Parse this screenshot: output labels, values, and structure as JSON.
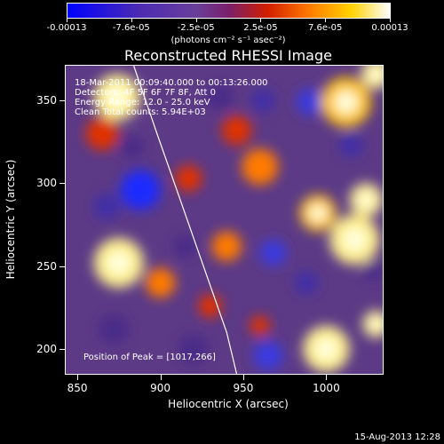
{
  "colorbar": {
    "tick_labels": [
      "-0.00013",
      "-7.6e-05",
      "-2.5e-05",
      "2.5e-05",
      "7.6e-05",
      "0.00013"
    ],
    "units": "(photons cm⁻² s⁻¹ asec⁻²)",
    "stops": [
      "#0000ff",
      "#4b2bb3",
      "#6a3f9a",
      "#7a1f6a",
      "#d21e00",
      "#ff7a00",
      "#ffd200",
      "#ffffff"
    ]
  },
  "annotations": {
    "time_range": "18-Mar-2011 00:09:40.000 to 00:13:26.000",
    "detectors": "Detectors: 4F 5F 6F 7F 8F, Att 0",
    "energy_range": "Energy Range: 12.0 - 25.0 keV",
    "algorithm": "Clean     Total counts: 5.94E+03",
    "peak_position": "Position of Peak = [1017,266]"
  },
  "timestamp": "15-Aug-2013 12:28",
  "chart_data": {
    "type": "heatmap",
    "title": "Reconstructed RHESSI Image",
    "xlabel": "Heliocentric X (arcsec)",
    "ylabel": "Heliocentric Y (arcsec)",
    "xlim": [
      843,
      1034
    ],
    "ylim": [
      185,
      371
    ],
    "xticks": [
      "850",
      "900",
      "950",
      "1000"
    ],
    "yticks": [
      "350",
      "300",
      "250",
      "200"
    ],
    "value_range": [
      -0.00013,
      0.00013
    ],
    "peak": [
      1017,
      266
    ],
    "limb_curve": [
      [
        884,
        371
      ],
      [
        898,
        330
      ],
      [
        912,
        290
      ],
      [
        926,
        250
      ],
      [
        940,
        210
      ],
      [
        946,
        185
      ]
    ],
    "blobs": [
      {
        "x": 874,
        "y": 352,
        "r": 14,
        "v": 1.0
      },
      {
        "x": 865,
        "y": 330,
        "r": 10,
        "v": 0.55
      },
      {
        "x": 1012,
        "y": 349,
        "r": 15,
        "v": 0.85
      },
      {
        "x": 1030,
        "y": 366,
        "r": 9,
        "v": 0.9
      },
      {
        "x": 960,
        "y": 310,
        "r": 11,
        "v": 0.6
      },
      {
        "x": 946,
        "y": 332,
        "r": 9,
        "v": 0.55
      },
      {
        "x": 917,
        "y": 303,
        "r": 8,
        "v": 0.45
      },
      {
        "x": 1017,
        "y": 266,
        "r": 15,
        "v": 1.0
      },
      {
        "x": 995,
        "y": 282,
        "r": 11,
        "v": 0.8
      },
      {
        "x": 1024,
        "y": 290,
        "r": 10,
        "v": 0.9
      },
      {
        "x": 875,
        "y": 252,
        "r": 15,
        "v": 0.95
      },
      {
        "x": 900,
        "y": 240,
        "r": 9,
        "v": 0.6
      },
      {
        "x": 940,
        "y": 262,
        "r": 9,
        "v": 0.7
      },
      {
        "x": 1000,
        "y": 200,
        "r": 14,
        "v": 1.0
      },
      {
        "x": 1030,
        "y": 215,
        "r": 8,
        "v": 0.95
      },
      {
        "x": 960,
        "y": 214,
        "r": 6,
        "v": 0.5
      },
      {
        "x": 930,
        "y": 226,
        "r": 7,
        "v": 0.45
      },
      {
        "x": 883,
        "y": 322,
        "r": 7,
        "v": -0.4
      },
      {
        "x": 888,
        "y": 296,
        "r": 12,
        "v": -1.0
      },
      {
        "x": 990,
        "y": 349,
        "r": 8,
        "v": -0.8
      },
      {
        "x": 1015,
        "y": 323,
        "r": 7,
        "v": -0.55
      },
      {
        "x": 968,
        "y": 258,
        "r": 8,
        "v": -0.7
      },
      {
        "x": 988,
        "y": 240,
        "r": 7,
        "v": -0.6
      },
      {
        "x": 868,
        "y": 286,
        "r": 8,
        "v": -0.5
      },
      {
        "x": 915,
        "y": 262,
        "r": 7,
        "v": -0.45
      },
      {
        "x": 962,
        "y": 350,
        "r": 7,
        "v": -0.55
      },
      {
        "x": 872,
        "y": 212,
        "r": 9,
        "v": -0.4
      },
      {
        "x": 920,
        "y": 200,
        "r": 9,
        "v": -0.4
      },
      {
        "x": 965,
        "y": 196,
        "r": 9,
        "v": -0.75
      },
      {
        "x": 1028,
        "y": 247,
        "r": 6,
        "v": -0.4
      },
      {
        "x": 936,
        "y": 352,
        "r": 8,
        "v": -0.3
      }
    ]
  }
}
